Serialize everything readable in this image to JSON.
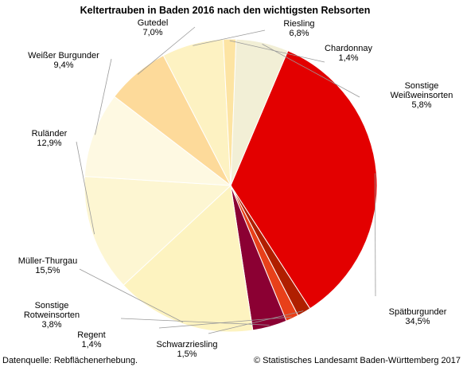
{
  "chart_data": {
    "type": "pie",
    "title": "Keltertrauben in Baden 2016 nach den wichtigsten Rebsorten",
    "slices": [
      {
        "name": "Spätburgunder",
        "value_label": "34,5%",
        "value": 34.5,
        "color": "#e30000"
      },
      {
        "name": "Schwarzriesling",
        "value_label": "1,5%",
        "value": 1.5,
        "color": "#b01f00"
      },
      {
        "name": "Regent",
        "value_label": "1,4%",
        "value": 1.4,
        "color": "#e8401a"
      },
      {
        "name": "Sonstige Rotweinsorten",
        "value_label": "3,8%",
        "value": 3.8,
        "color": "#8b0033"
      },
      {
        "name": "Müller-Thurgau",
        "value_label": "15,5%",
        "value": 15.5,
        "color": "#fdf3c0"
      },
      {
        "name": "Ruländer",
        "value_label": "12,9%",
        "value": 12.9,
        "color": "#fdf6d2"
      },
      {
        "name": "Weißer Burgunder",
        "value_label": "9,4%",
        "value": 9.4,
        "color": "#fef9e2"
      },
      {
        "name": "Gutedel",
        "value_label": "7,0%",
        "value": 7.0,
        "color": "#fdda9a"
      },
      {
        "name": "Riesling",
        "value_label": "6,8%",
        "value": 6.8,
        "color": "#fdf2c2"
      },
      {
        "name": "Chardonnay",
        "value_label": "1,4%",
        "value": 1.4,
        "color": "#fde4a3"
      },
      {
        "name": "Sonstige Weißweinsorten",
        "value_label": "5,8%",
        "value": 5.8,
        "color": "#f2efd6"
      }
    ]
  },
  "footer": {
    "source": "Datenquelle: Rebflächenerhebung.",
    "copyright": "© Statistisches Landesamt Baden-Württemberg 2017"
  }
}
